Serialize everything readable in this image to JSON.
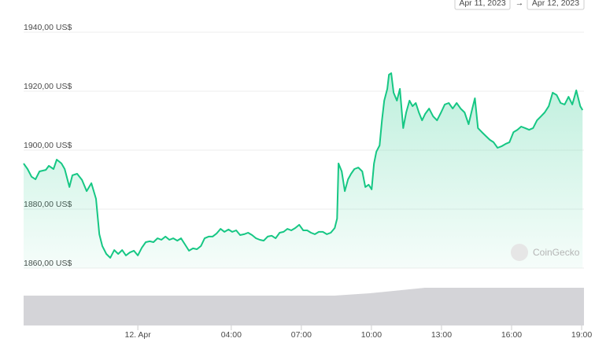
{
  "chart_data": {
    "type": "area-line",
    "date_from": "Apr 11, 2023",
    "date_separator": "→",
    "date_to": "Apr 12, 2023",
    "watermark": "CoinGecko",
    "grid": true,
    "xlim": [
      -4.89,
      19.1
    ],
    "xticks": [
      {
        "value": 0,
        "label": "12. Apr"
      },
      {
        "value": 4,
        "label": "04:00"
      },
      {
        "value": 7,
        "label": "07:00"
      },
      {
        "value": 10,
        "label": "10:00"
      },
      {
        "value": 13,
        "label": "13:00"
      },
      {
        "value": 16,
        "label": "16:00"
      },
      {
        "value": 19,
        "label": "19:00"
      }
    ],
    "ylim": [
      1860,
      1940
    ],
    "yticks": [
      {
        "value": 1860,
        "label": "1860,00 US$"
      },
      {
        "value": 1880,
        "label": "1880,00 US$"
      },
      {
        "value": 1900,
        "label": "1900,00 US$"
      },
      {
        "value": 1920,
        "label": "1920,00 US$"
      },
      {
        "value": 1940,
        "label": "1940,00 US$"
      }
    ],
    "x": [
      -4.89,
      -4.72,
      -4.55,
      -4.38,
      -4.21,
      -3.94,
      -3.81,
      -3.61,
      -3.47,
      -3.27,
      -3.13,
      -2.93,
      -2.8,
      -2.6,
      -2.39,
      -2.19,
      -1.99,
      -1.79,
      -1.65,
      -1.52,
      -1.35,
      -1.18,
      -1.01,
      -0.84,
      -0.67,
      -0.51,
      -0.34,
      -0.17,
      0,
      0.17,
      0.34,
      0.51,
      0.67,
      0.84,
      1.01,
      1.18,
      1.35,
      1.52,
      1.69,
      1.85,
      2.02,
      2.19,
      2.36,
      2.53,
      2.7,
      2.86,
      3.03,
      3.2,
      3.37,
      3.54,
      3.71,
      3.88,
      4.04,
      4.21,
      4.38,
      4.55,
      4.72,
      4.89,
      5.06,
      5.22,
      5.39,
      5.56,
      5.73,
      5.9,
      6.07,
      6.24,
      6.4,
      6.57,
      6.74,
      6.91,
      7.08,
      7.25,
      7.41,
      7.58,
      7.75,
      7.92,
      8.09,
      8.26,
      8.43,
      8.53,
      8.59,
      8.73,
      8.86,
      9.0,
      9.13,
      9.27,
      9.44,
      9.61,
      9.74,
      9.88,
      10.01,
      10.11,
      10.21,
      10.35,
      10.45,
      10.55,
      10.68,
      10.75,
      10.85,
      10.95,
      11.09,
      11.22,
      11.36,
      11.49,
      11.63,
      11.76,
      11.9,
      12.03,
      12.17,
      12.3,
      12.47,
      12.64,
      12.81,
      12.98,
      13.14,
      13.31,
      13.48,
      13.65,
      13.82,
      13.99,
      14.16,
      14.32,
      14.43,
      14.56,
      14.73,
      14.9,
      15.07,
      15.23,
      15.4,
      15.57,
      15.74,
      15.91,
      16.08,
      16.25,
      16.41,
      16.58,
      16.75,
      16.92,
      17.09,
      17.26,
      17.42,
      17.59,
      17.76,
      17.93,
      18.1,
      18.27,
      18.44,
      18.6,
      18.77,
      18.94,
      19.04
    ],
    "series": [
      {
        "color": "#16c784",
        "values": [
          1895.5,
          1893.6,
          1891,
          1890.1,
          1892.8,
          1893.3,
          1894.7,
          1893.6,
          1896.8,
          1895.5,
          1893.6,
          1887.5,
          1891.5,
          1892,
          1889.9,
          1886.1,
          1888.8,
          1883.5,
          1871.5,
          1867.5,
          1864.8,
          1863.5,
          1866.1,
          1864.8,
          1866.1,
          1864.3,
          1865.3,
          1865.9,
          1864.3,
          1866.9,
          1868.8,
          1869.1,
          1868.8,
          1870.1,
          1869.6,
          1870.7,
          1869.6,
          1870.1,
          1869.3,
          1870.1,
          1868,
          1865.9,
          1866.7,
          1866.4,
          1867.5,
          1870.1,
          1870.7,
          1870.7,
          1871.7,
          1873.3,
          1872.3,
          1873.1,
          1872.3,
          1872.8,
          1871.2,
          1871.5,
          1872,
          1871.2,
          1870.1,
          1869.6,
          1869.3,
          1870.7,
          1871,
          1870.1,
          1872,
          1872.3,
          1873.3,
          1872.8,
          1873.6,
          1874.7,
          1872.8,
          1872.8,
          1872,
          1871.5,
          1872.3,
          1872.3,
          1871.5,
          1872,
          1873.6,
          1876.8,
          1895.5,
          1892.8,
          1886.1,
          1890.1,
          1892,
          1893.6,
          1894.1,
          1892.8,
          1887.5,
          1888.3,
          1886.7,
          1895.5,
          1899.5,
          1901.6,
          1910.1,
          1916.8,
          1920.8,
          1925.6,
          1926.1,
          1919.5,
          1916.8,
          1920.8,
          1907.5,
          1912.8,
          1916.8,
          1914.9,
          1916,
          1912.8,
          1910.1,
          1912.3,
          1914.1,
          1911.5,
          1910.1,
          1912.8,
          1915.5,
          1916,
          1914.1,
          1916,
          1914.1,
          1912.8,
          1908.8,
          1914.1,
          1917.6,
          1907.5,
          1906.1,
          1904.8,
          1903.5,
          1902.7,
          1900.8,
          1901.3,
          1902.1,
          1902.7,
          1906.1,
          1906.9,
          1908,
          1907.5,
          1906.9,
          1907.5,
          1910.1,
          1911.5,
          1912.8,
          1914.9,
          1919.5,
          1918.7,
          1916,
          1915.5,
          1918.1,
          1915.5,
          1920.3,
          1914.9,
          1913.6
        ]
      }
    ]
  }
}
